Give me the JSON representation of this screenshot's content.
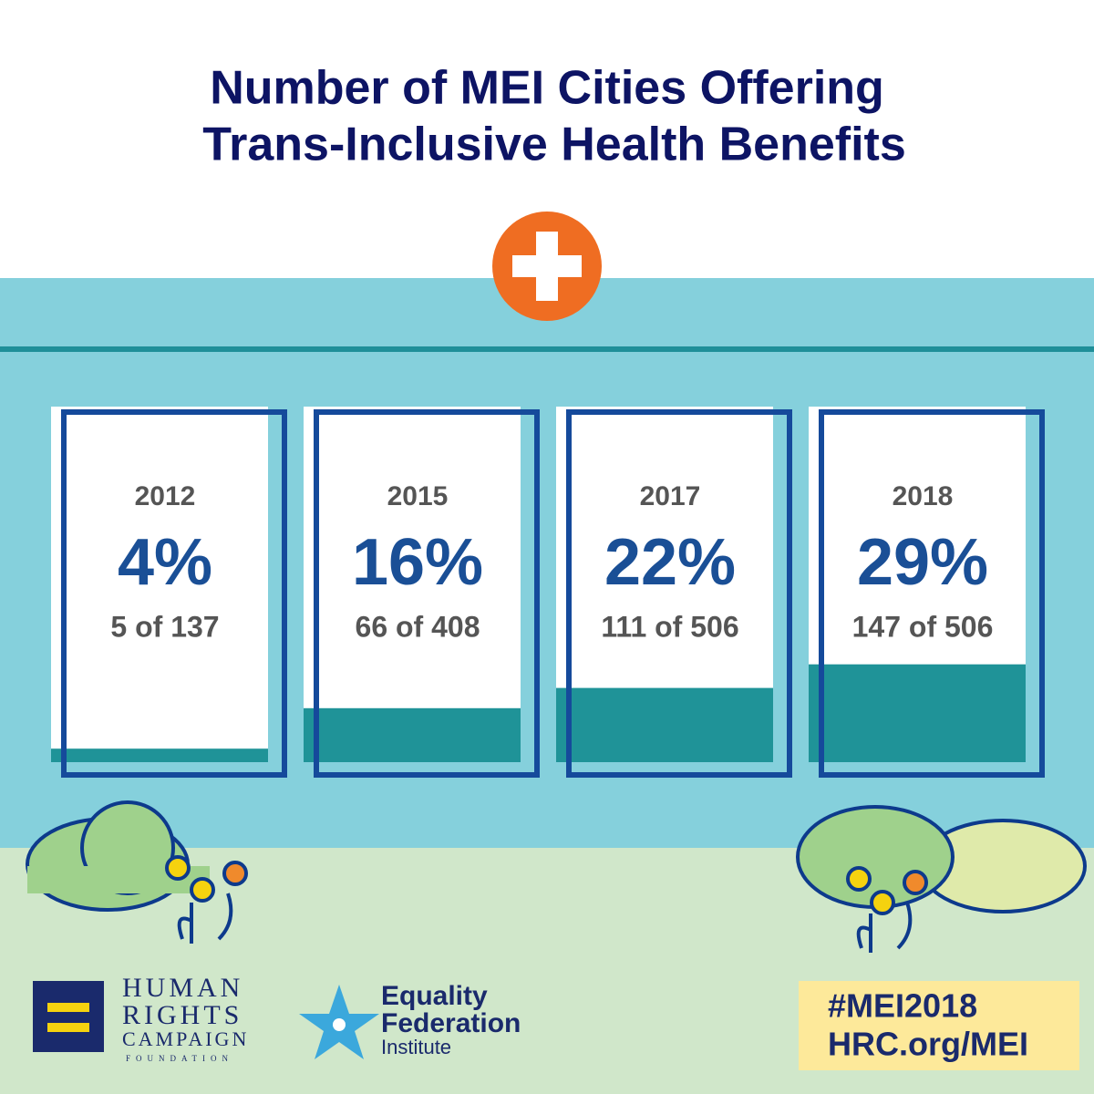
{
  "chart_data": {
    "type": "bar",
    "title": [
      "Number of MEI Cities Offering",
      "Trans-Inclusive Health Benefits"
    ],
    "categories": [
      "2012",
      "2015",
      "2017",
      "2018"
    ],
    "values": [
      4,
      16,
      22,
      29
    ],
    "value_labels": [
      "4%",
      "16%",
      "22%",
      "29%"
    ],
    "sublabels": [
      "5 of 137",
      "66 of 408",
      "111 of 506",
      "147 of 506"
    ],
    "color": "#1f9398"
  },
  "footer": {
    "hrc": [
      "HUMAN",
      "RIGHTS",
      "CAMPAIGN",
      "FOUNDATION"
    ],
    "efi": [
      "Equality",
      "Federation",
      "Institute"
    ],
    "tags": [
      "#MEI2018",
      "HRC.org/MEI"
    ]
  }
}
